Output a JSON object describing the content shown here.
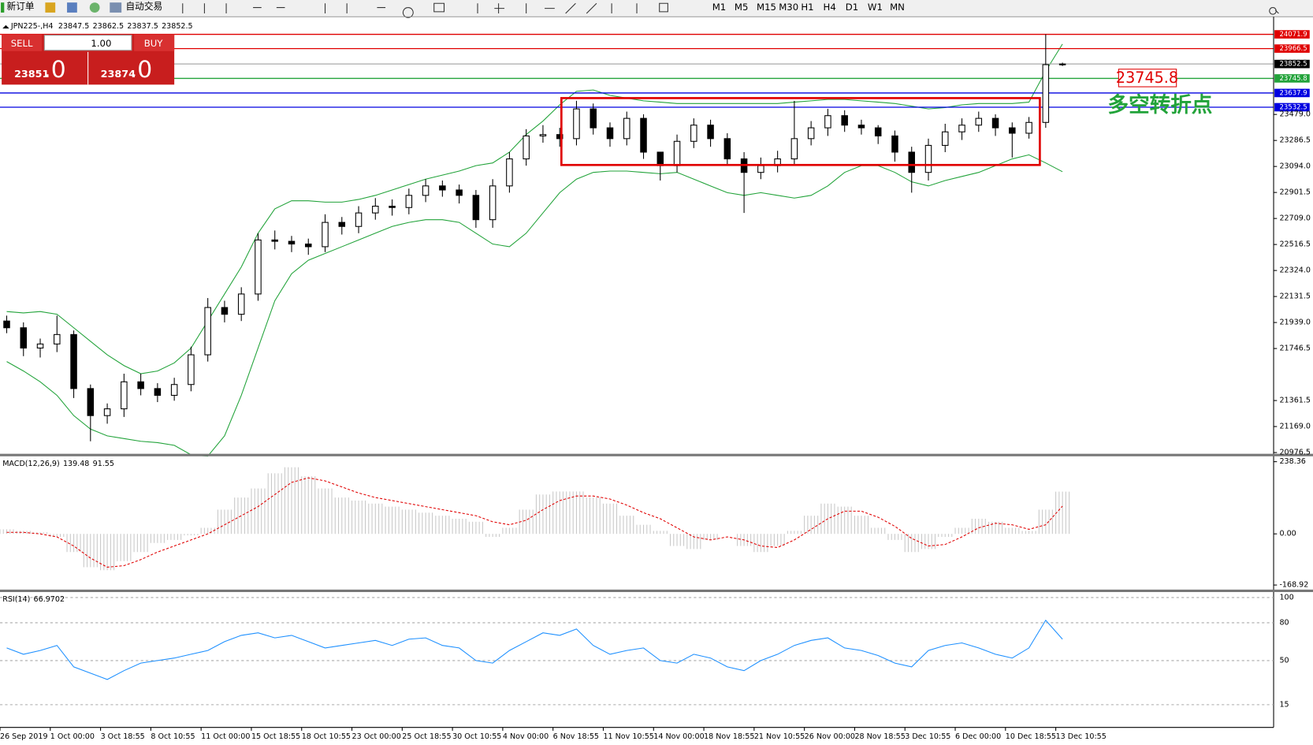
{
  "toolbar": {
    "new_order": "新订单",
    "auto_trading": "自动交易",
    "timeframes": [
      "M1",
      "M5",
      "M15",
      "M30",
      "H1",
      "H4",
      "D1",
      "W1",
      "MN"
    ]
  },
  "trade_panel": {
    "sell": "SELL",
    "lots": "1.00",
    "buy": "BUY",
    "sell_main": "23851",
    "sell_frac": ".0",
    "buy_main": "23874",
    "buy_frac": ".0"
  },
  "chart_data": {
    "type": "candlestick",
    "symbol": "JPN225-,H4",
    "categories": [
      "26 Sep 2019",
      null,
      null,
      "1 Oct 00:00",
      null,
      null,
      "3 Oct 18:55",
      null,
      null,
      "8 Oct 10:55",
      null,
      null,
      "11 Oct 00:00",
      null,
      null,
      "15 Oct 18:55",
      null,
      null,
      "18 Oct 10:55",
      null,
      null,
      "23 Oct 00:00",
      null,
      null,
      "25 Oct 18:55",
      null,
      null,
      "30 Oct 10:55",
      null,
      null,
      "4 Nov 00:00",
      null,
      null,
      "6 Nov 18:55",
      null,
      null,
      "11 Nov 10:55",
      null,
      null,
      "14 Nov 00:00",
      null,
      null,
      "18 Nov 18:55",
      null,
      null,
      "21 Nov 10:55",
      null,
      null,
      "26 Nov 00:00",
      null,
      null,
      "28 Nov 18:55",
      null,
      null,
      "3 Dec 10:55",
      null,
      null,
      "6 Dec 00:00",
      null,
      null,
      "10 Dec 18:55",
      null,
      null,
      "13 Dec 10:55"
    ],
    "open": [
      21950,
      21900,
      21750,
      21780,
      21850,
      21450,
      21250,
      21300,
      21500,
      21450,
      21400,
      21480,
      21700,
      22050,
      22000,
      22150,
      22550,
      22540,
      22520,
      22500,
      22680,
      22650,
      22750,
      22800,
      22790,
      22880,
      22950,
      22920,
      22880,
      22700,
      22950,
      23150,
      23320,
      23330,
      23300,
      23520,
      23380,
      23300,
      23450,
      23200,
      23100,
      23280,
      23400,
      23300,
      23150,
      23050,
      23100,
      23150,
      23300,
      23380,
      23470,
      23400,
      23380,
      23320,
      23200,
      23050,
      23250,
      23350,
      23400,
      23450,
      23380,
      23340,
      23420,
      23847.5
    ],
    "high": [
      21990,
      21940,
      21820,
      21990,
      21880,
      21480,
      21340,
      21560,
      21560,
      21490,
      21530,
      21760,
      22120,
      22100,
      22200,
      22600,
      22620,
      22580,
      22560,
      22740,
      22720,
      22800,
      22860,
      22850,
      22930,
      23000,
      22990,
      22960,
      22920,
      23000,
      23200,
      23370,
      23400,
      23380,
      23580,
      23560,
      23420,
      23500,
      23480,
      23180,
      23330,
      23450,
      23440,
      23340,
      23200,
      23160,
      23210,
      23580,
      23430,
      23520,
      23510,
      23440,
      23400,
      23360,
      23240,
      23300,
      23410,
      23450,
      23500,
      23480,
      23420,
      23460,
      24071.9,
      23862.5
    ],
    "low": [
      21860,
      21690,
      21680,
      21720,
      21380,
      21060,
      21190,
      21240,
      21400,
      21350,
      21360,
      21430,
      21650,
      21940,
      21950,
      22100,
      22480,
      22460,
      22440,
      22460,
      22590,
      22600,
      22700,
      22730,
      22740,
      22830,
      22870,
      22820,
      22640,
      22640,
      22900,
      23100,
      23270,
      23240,
      23250,
      23330,
      23240,
      23250,
      23150,
      22990,
      23050,
      23230,
      23240,
      23100,
      22750,
      23000,
      23050,
      23100,
      23250,
      23320,
      23350,
      23330,
      23260,
      23130,
      22900,
      22990,
      23200,
      23290,
      23350,
      23320,
      23160,
      23300,
      23380,
      23837.5
    ],
    "close": [
      21900,
      21750,
      21780,
      21850,
      21450,
      21250,
      21300,
      21500,
      21450,
      21400,
      21480,
      21700,
      22050,
      22000,
      22150,
      22550,
      22540,
      22520,
      22500,
      22680,
      22650,
      22750,
      22800,
      22790,
      22880,
      22950,
      22920,
      22880,
      22700,
      22950,
      23150,
      23320,
      23330,
      23300,
      23520,
      23380,
      23300,
      23450,
      23200,
      23100,
      23280,
      23400,
      23300,
      23150,
      23050,
      23100,
      23150,
      23300,
      23380,
      23470,
      23400,
      23380,
      23320,
      23200,
      23050,
      23250,
      23350,
      23400,
      23450,
      23380,
      23340,
      23420,
      23847.5,
      23852.5
    ],
    "bands": {
      "color": "#22a33a",
      "upper": [
        22020,
        22010,
        22020,
        22000,
        21900,
        21800,
        21700,
        21620,
        21560,
        21580,
        21640,
        21750,
        21950,
        22150,
        22350,
        22600,
        22780,
        22840,
        22840,
        22830,
        22830,
        22850,
        22880,
        22920,
        22960,
        23000,
        23030,
        23060,
        23100,
        23120,
        23200,
        23330,
        23430,
        23550,
        23650,
        23660,
        23620,
        23600,
        23580,
        23570,
        23560,
        23560,
        23560,
        23560,
        23560,
        23560,
        23560,
        23570,
        23580,
        23590,
        23590,
        23580,
        23570,
        23560,
        23540,
        23520,
        23530,
        23550,
        23560,
        23560,
        23560,
        23570,
        23800,
        24000
      ],
      "lower": [
        21650,
        21580,
        21500,
        21400,
        21250,
        21150,
        21100,
        21080,
        21060,
        21050,
        21030,
        20960,
        20950,
        21100,
        21400,
        21750,
        22100,
        22300,
        22400,
        22450,
        22500,
        22550,
        22600,
        22650,
        22680,
        22700,
        22700,
        22680,
        22600,
        22520,
        22500,
        22600,
        22750,
        22900,
        23000,
        23050,
        23060,
        23060,
        23050,
        23040,
        23050,
        23000,
        22950,
        22900,
        22880,
        22900,
        22880,
        22860,
        22880,
        22950,
        23050,
        23100,
        23100,
        23050,
        22980,
        22950,
        22990,
        23020,
        23050,
        23100,
        23150,
        23180,
        23120,
        23055
      ]
    },
    "ylim": [
      20958,
      24202
    ],
    "yticks": [
      20976.5,
      {
        "value": 21169,
        "label": "21169.0"
      },
      21361.5,
      21746.5,
      {
        "value": 21939,
        "label": "21939.0"
      },
      22131.5,
      {
        "value": 22324,
        "label": "22324.0"
      },
      22516.5,
      {
        "value": 22709,
        "label": "22709.0"
      },
      22901.5,
      {
        "value": 23094,
        "label": "23094.0"
      },
      23286.5,
      {
        "value": 23479,
        "label": "23479.0"
      }
    ],
    "levels": [
      {
        "value": 24071.9,
        "color": "#e00000"
      },
      {
        "value": 23966.5,
        "color": "#e00000"
      },
      {
        "value": 23852.5,
        "color": "#000000"
      },
      {
        "value": 23745.8,
        "color": "#22a33a"
      },
      {
        "value": 23637.9,
        "color": "#0000e0"
      },
      {
        "value": 23532.5,
        "color": "#0000e0"
      }
    ],
    "range_box": {
      "high": 23600,
      "low": 23105,
      "color": "#e00000"
    },
    "annotations": {
      "turning_point": "多空转折点",
      "color": "#22a33a"
    },
    "macd": {
      "name": "MACD(12,26,9)",
      "color": "#c8c8c8",
      "signal_color": "#e00000",
      "values": [
        15,
        10,
        5,
        -10,
        -60,
        -110,
        -120,
        -90,
        -60,
        -30,
        -20,
        -5,
        20,
        80,
        120,
        150,
        200,
        220,
        190,
        150,
        120,
        110,
        100,
        90,
        80,
        70,
        60,
        50,
        40,
        -10,
        20,
        80,
        130,
        140,
        140,
        120,
        100,
        60,
        30,
        10,
        -40,
        -50,
        -20,
        0,
        -40,
        -60,
        -40,
        10,
        60,
        100,
        90,
        60,
        20,
        -20,
        -60,
        -50,
        -10,
        20,
        50,
        40,
        20,
        10,
        80,
        139.48
      ],
      "signal": [
        5,
        5,
        0,
        -10,
        -40,
        -80,
        -110,
        -105,
        -85,
        -60,
        -40,
        -20,
        0,
        30,
        60,
        90,
        130,
        170,
        185,
        175,
        155,
        135,
        120,
        110,
        100,
        90,
        80,
        70,
        60,
        40,
        30,
        45,
        80,
        110,
        125,
        125,
        115,
        95,
        70,
        50,
        20,
        -10,
        -20,
        -10,
        -20,
        -40,
        -45,
        -20,
        15,
        50,
        75,
        75,
        55,
        25,
        -15,
        -40,
        -35,
        -10,
        20,
        35,
        30,
        15,
        30,
        91.55
      ],
      "ylim": [
        -188,
        252
      ],
      "yticks": [
        238.36,
        {
          "value": 0,
          "label": "0.00"
        },
        -168.92
      ]
    },
    "rsi": {
      "name": "RSI(14)",
      "color": "#1e90ff",
      "values": [
        60,
        55,
        58,
        62,
        45,
        40,
        35,
        42,
        48,
        50,
        52,
        55,
        58,
        65,
        70,
        72,
        68,
        70,
        65,
        60,
        62,
        64,
        66,
        62,
        67,
        68,
        62,
        60,
        50,
        48,
        58,
        65,
        72,
        70,
        75,
        62,
        55,
        58,
        60,
        50,
        48,
        55,
        52,
        45,
        42,
        50,
        55,
        62,
        66,
        68,
        60,
        58,
        54,
        48,
        45,
        58,
        62,
        64,
        60,
        55,
        52,
        60,
        82,
        66.9702
      ],
      "ylim": [
        -3,
        104
      ],
      "yticks": [
        100,
        80,
        50,
        15
      ]
    }
  }
}
